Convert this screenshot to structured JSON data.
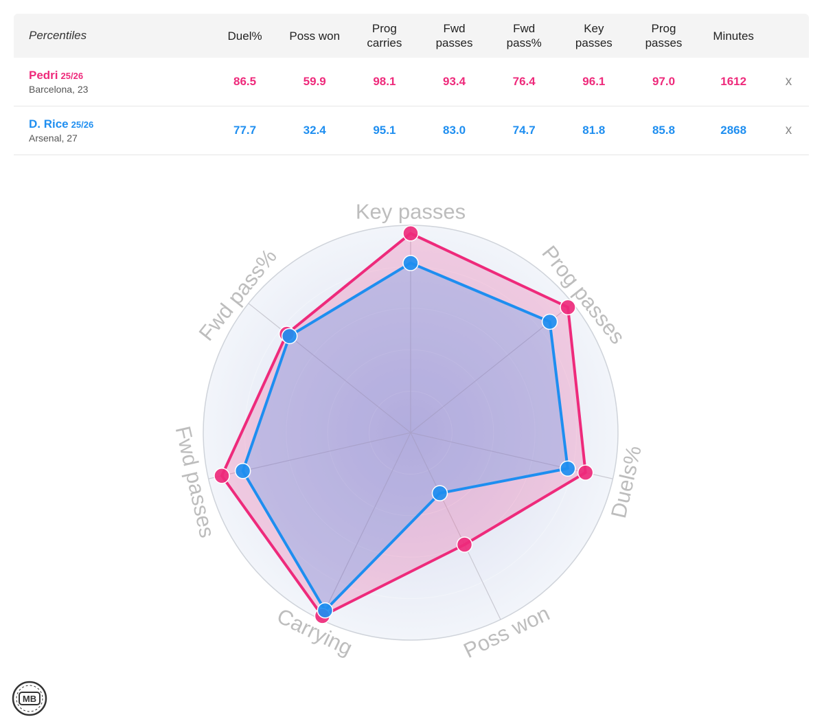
{
  "table": {
    "header_label": "Percentiles",
    "columns": [
      {
        "l1": "Duel%",
        "l2": ""
      },
      {
        "l1": "Poss won",
        "l2": ""
      },
      {
        "l1": "Prog",
        "l2": "carries"
      },
      {
        "l1": "Fwd",
        "l2": "passes"
      },
      {
        "l1": "Fwd",
        "l2": "pass%"
      },
      {
        "l1": "Key",
        "l2": "passes"
      },
      {
        "l1": "Prog",
        "l2": "passes"
      },
      {
        "l1": "Minutes",
        "l2": ""
      }
    ],
    "remove_label": "x",
    "players": [
      {
        "name": "Pedri",
        "season": "25/26",
        "club": "Barcelona, 23",
        "color": "#ee2a7b",
        "values": [
          "86.5",
          "59.9",
          "98.1",
          "93.4",
          "76.4",
          "96.1",
          "97.0",
          "1612"
        ]
      },
      {
        "name": "D. Rice",
        "season": "25/26",
        "club": "Arsenal, 27",
        "color": "#1e8ef0",
        "values": [
          "77.7",
          "32.4",
          "95.1",
          "83.0",
          "74.7",
          "81.8",
          "85.8",
          "2868"
        ]
      }
    ]
  },
  "chart_data": {
    "type": "radar",
    "range": [
      0,
      100
    ],
    "axes": [
      "Key passes",
      "Prog passes",
      "Duels%",
      "Poss won",
      "Carrying",
      "Fwd passes",
      "Fwd pass%"
    ],
    "series": [
      {
        "name": "Pedri 25/26",
        "color": "#ee2a7b",
        "values": [
          96.1,
          97.0,
          86.5,
          59.9,
          98.1,
          93.4,
          76.4
        ]
      },
      {
        "name": "D. Rice 25/26",
        "color": "#1e8ef0",
        "values": [
          81.8,
          85.8,
          77.7,
          32.4,
          95.1,
          83.0,
          74.7
        ]
      }
    ]
  },
  "logo": {
    "text": "MB"
  }
}
